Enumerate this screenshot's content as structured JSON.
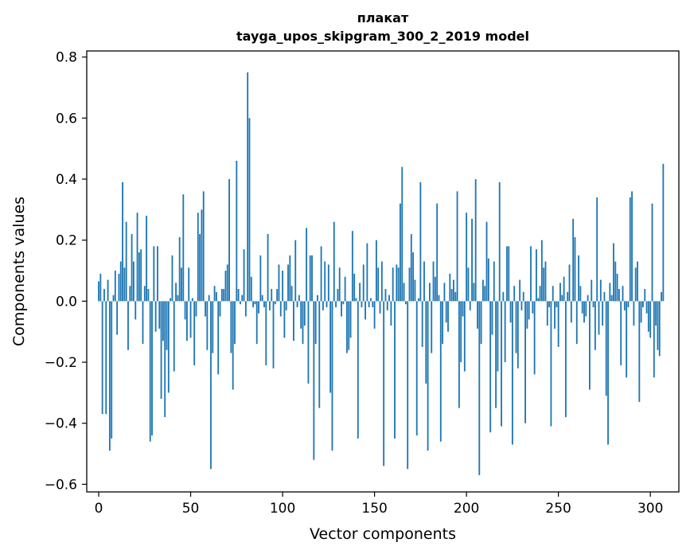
{
  "chart_data": {
    "type": "bar",
    "title": "плакат",
    "subtitle": "tayga_upos_skipgram_300_2_2019 model",
    "xlabel": "Vector components",
    "ylabel": "Components values",
    "xlim": [
      -6.5,
      315.5
    ],
    "ylim": [
      -0.625,
      0.82
    ],
    "xticks": [
      0,
      50,
      100,
      150,
      200,
      250,
      300
    ],
    "yticks": [
      -0.6,
      -0.4,
      -0.2,
      0.0,
      0.2,
      0.4,
      0.6,
      0.8
    ],
    "ytick_labels": [
      "−0.6",
      "−0.4",
      "−0.2",
      "0.0",
      "0.2",
      "0.4",
      "0.6",
      "0.8"
    ],
    "bar_color": "#1f77b4",
    "x_start": 0,
    "values": [
      0.065,
      0.09,
      -0.37,
      0.04,
      -0.37,
      0.07,
      -0.49,
      -0.45,
      0.02,
      0.1,
      -0.11,
      0.09,
      0.13,
      0.39,
      0.11,
      0.26,
      -0.16,
      0.05,
      0.22,
      0.13,
      -0.06,
      0.29,
      0.16,
      0.17,
      -0.14,
      0.05,
      0.28,
      0.04,
      -0.46,
      -0.44,
      0.18,
      -0.1,
      0.18,
      -0.09,
      -0.32,
      -0.13,
      -0.38,
      -0.16,
      -0.3,
      0.01,
      0.15,
      -0.23,
      0.06,
      0.02,
      0.21,
      0.11,
      0.35,
      -0.06,
      -0.13,
      0.11,
      -0.12,
      0.01,
      -0.21,
      -0.05,
      0.29,
      0.22,
      0.3,
      0.36,
      -0.05,
      -0.16,
      0.02,
      -0.55,
      -0.17,
      0.05,
      0.03,
      -0.24,
      -0.05,
      0.04,
      0.04,
      0.1,
      0.12,
      0.4,
      -0.17,
      -0.29,
      -0.14,
      0.46,
      0.04,
      -0.01,
      0.02,
      0.17,
      -0.05,
      0.75,
      0.6,
      0.08,
      -0.02,
      -0.01,
      -0.14,
      -0.04,
      0.15,
      0.02,
      -0.02,
      -0.21,
      0.22,
      -0.03,
      0.04,
      -0.22,
      -0.01,
      0.04,
      0.12,
      -0.05,
      0.1,
      -0.12,
      -0.03,
      0.12,
      0.15,
      0.05,
      -0.13,
      0.2,
      -0.02,
      0.02,
      -0.09,
      -0.14,
      -0.08,
      0.24,
      -0.27,
      0.15,
      0.15,
      -0.52,
      -0.14,
      0.02,
      -0.35,
      0.18,
      -0.03,
      0.13,
      -0.02,
      0.12,
      -0.3,
      -0.49,
      0.26,
      -0.02,
      0.04,
      0.11,
      -0.05,
      -0.01,
      0.08,
      -0.17,
      -0.16,
      -0.12,
      0.23,
      0.09,
      0.01,
      -0.45,
      0.06,
      -0.02,
      0.12,
      -0.06,
      0.19,
      -0.02,
      0.01,
      -0.02,
      -0.09,
      0.2,
      0.11,
      -0.04,
      0.13,
      -0.54,
      0.04,
      -0.03,
      0.02,
      -0.08,
      0.11,
      -0.45,
      0.12,
      0.11,
      0.32,
      0.44,
      0.06,
      -0.01,
      -0.55,
      0.11,
      0.22,
      0.16,
      0.07,
      -0.44,
      0.01,
      0.39,
      -0.15,
      0.13,
      -0.27,
      -0.49,
      0.06,
      -0.17,
      0.13,
      0.08,
      0.32,
      0.02,
      -0.46,
      -0.14,
      0.06,
      -0.07,
      -0.1,
      0.09,
      0.04,
      0.07,
      0.03,
      0.36,
      -0.35,
      -0.2,
      -0.05,
      -0.23,
      0.29,
      0.11,
      -0.03,
      0.27,
      0.06,
      0.4,
      -0.09,
      -0.57,
      -0.14,
      0.07,
      0.05,
      0.26,
      0.14,
      -0.43,
      -0.11,
      0.13,
      -0.35,
      -0.23,
      0.39,
      -0.41,
      0.03,
      -0.2,
      0.18,
      0.18,
      -0.07,
      -0.47,
      0.05,
      -0.17,
      -0.22,
      0.07,
      -0.03,
      0.03,
      -0.4,
      -0.09,
      -0.06,
      0.18,
      -0.04,
      -0.24,
      0.17,
      0.01,
      0.05,
      0.2,
      0.11,
      0.13,
      -0.08,
      -0.02,
      -0.41,
      0.05,
      -0.09,
      -0.02,
      -0.15,
      0.06,
      0.02,
      0.08,
      -0.38,
      0.03,
      0.12,
      -0.07,
      0.27,
      0.21,
      -0.14,
      0.15,
      0.05,
      -0.04,
      -0.07,
      -0.05,
      0.02,
      -0.29,
      0.07,
      -0.02,
      -0.16,
      0.34,
      -0.11,
      0.07,
      -0.08,
      0.03,
      -0.31,
      -0.47,
      0.06,
      0.02,
      0.19,
      0.13,
      0.09,
      0.04,
      -0.21,
      0.05,
      -0.03,
      -0.25,
      -0.02,
      0.34,
      0.36,
      -0.08,
      0.11,
      0.13,
      -0.33,
      -0.07,
      -0.02,
      0.04,
      -0.04,
      -0.1,
      -0.12,
      0.32,
      -0.25,
      -0.08,
      -0.16,
      -0.18,
      0.03,
      0.45
    ]
  }
}
